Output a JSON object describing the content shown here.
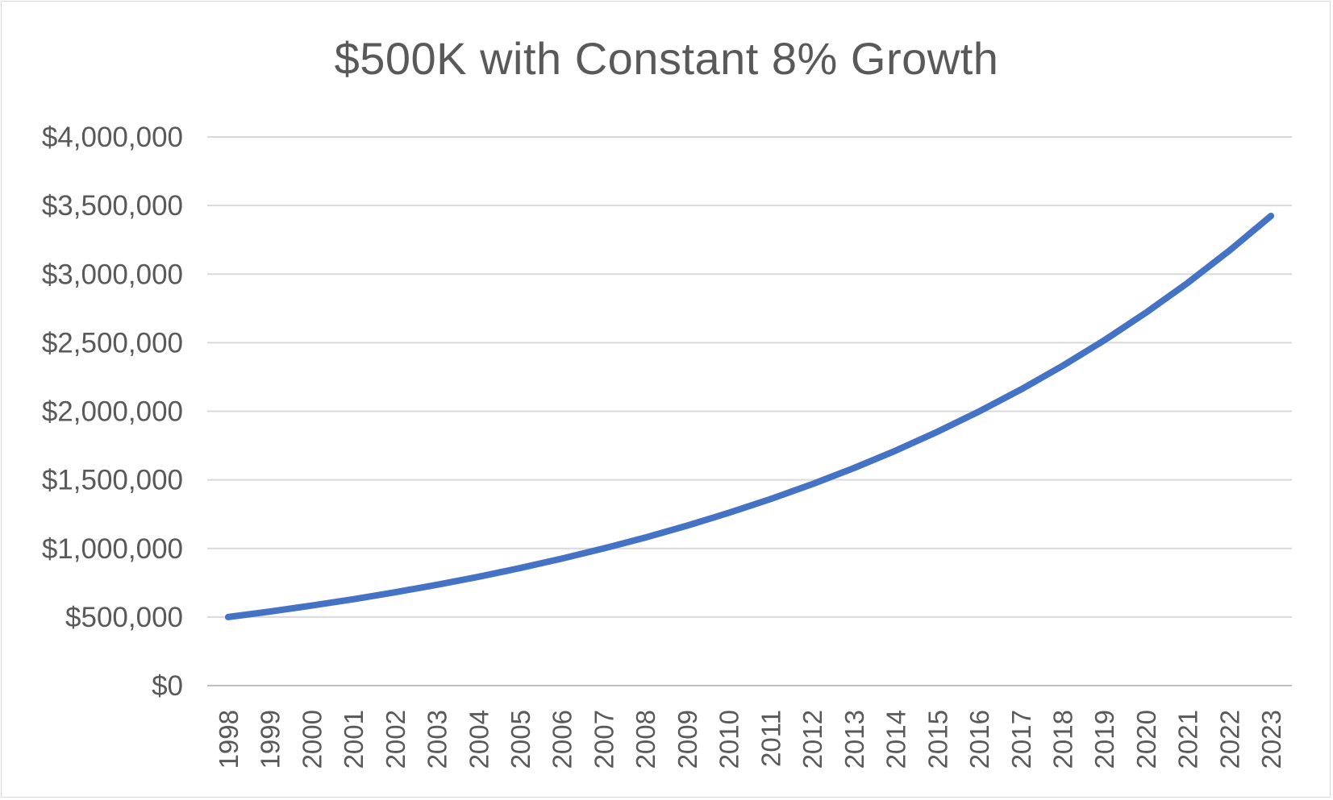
{
  "chart_data": {
    "type": "line",
    "title": "$500K with Constant 8% Growth",
    "xlabel": "",
    "ylabel": "",
    "ylim": [
      0,
      4000000
    ],
    "y_ticks": [
      0,
      500000,
      1000000,
      1500000,
      2000000,
      2500000,
      3000000,
      3500000,
      4000000
    ],
    "y_tick_labels": [
      "$0",
      "$500,000",
      "$1,000,000",
      "$1,500,000",
      "$2,000,000",
      "$2,500,000",
      "$3,000,000",
      "$3,500,000",
      "$4,000,000"
    ],
    "categories": [
      "1998",
      "1999",
      "2000",
      "2001",
      "2002",
      "2003",
      "2004",
      "2005",
      "2006",
      "2007",
      "2008",
      "2009",
      "2010",
      "2011",
      "2012",
      "2013",
      "2014",
      "2015",
      "2016",
      "2017",
      "2018",
      "2019",
      "2020",
      "2021",
      "2022",
      "2023"
    ],
    "series": [
      {
        "values": [
          500000,
          540000,
          583200,
          629856,
          680244,
          734664,
          793437,
          856912,
          925465,
          999502,
          1079462,
          1165819,
          1259085,
          1359812,
          1468597,
          1586085,
          1712971,
          1850009,
          1998010,
          2157851,
          2330479,
          2516917,
          2718270,
          2935732,
          3170590,
          3424238
        ]
      }
    ],
    "grid": true,
    "legend": "none",
    "colors": {
      "line": "#4472c4",
      "grid": "#d9d9d9",
      "axis": "#bfbfbf",
      "text": "#595959"
    }
  }
}
